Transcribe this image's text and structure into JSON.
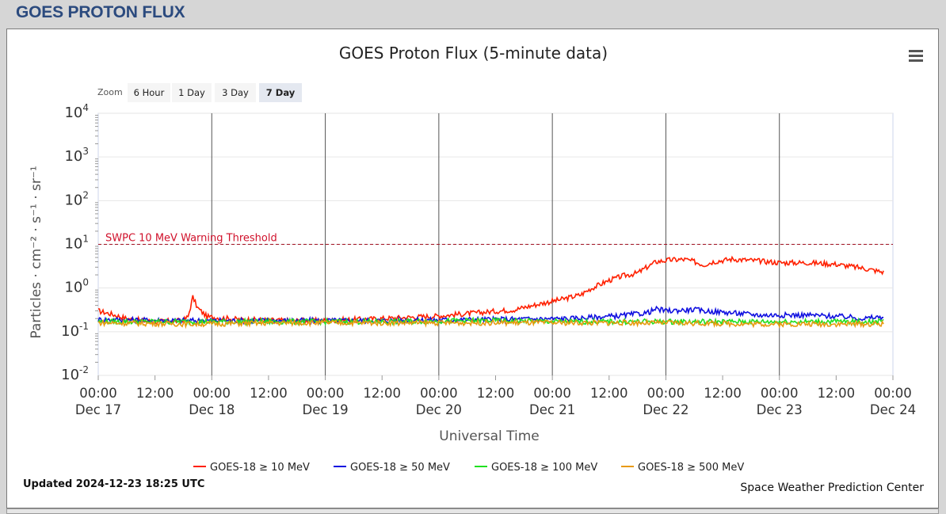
{
  "page": {
    "title": "GOES PROTON FLUX"
  },
  "chart": {
    "title": "GOES Proton Flux (5-minute data)",
    "updated": "Updated 2024-12-23 18:25 UTC",
    "credit": "Space Weather Prediction Center",
    "zoom": {
      "label": "Zoom",
      "buttons": [
        "6 Hour",
        "1 Day",
        "3 Day",
        "7 Day"
      ],
      "active": "7 Day"
    }
  },
  "chart_data": {
    "type": "line",
    "title": "GOES Proton Flux (5-minute data)",
    "xlabel": "Universal Time",
    "ylabel": "Particles · cm⁻² · s⁻¹ · sr⁻¹",
    "yscale": "log",
    "ylim": [
      0.01,
      10000
    ],
    "xlim_hours": [
      0,
      168
    ],
    "yticks": [
      {
        "base": "10",
        "exp": "4",
        "value": 10000
      },
      {
        "base": "10",
        "exp": "3",
        "value": 1000
      },
      {
        "base": "10",
        "exp": "2",
        "value": 100
      },
      {
        "base": "10",
        "exp": "1",
        "value": 10
      },
      {
        "base": "10",
        "exp": "0",
        "value": 1
      },
      {
        "base": "10",
        "exp": "-1",
        "value": 0.1
      },
      {
        "base": "10",
        "exp": "-2",
        "value": 0.01
      }
    ],
    "xticks": [
      {
        "time": "00:00",
        "date": "Dec 17"
      },
      {
        "time": "12:00",
        "date": ""
      },
      {
        "time": "00:00",
        "date": "Dec 18"
      },
      {
        "time": "12:00",
        "date": ""
      },
      {
        "time": "00:00",
        "date": "Dec 19"
      },
      {
        "time": "12:00",
        "date": ""
      },
      {
        "time": "00:00",
        "date": "Dec 20"
      },
      {
        "time": "12:00",
        "date": ""
      },
      {
        "time": "00:00",
        "date": "Dec 21"
      },
      {
        "time": "12:00",
        "date": ""
      },
      {
        "time": "00:00",
        "date": "Dec 22"
      },
      {
        "time": "12:00",
        "date": ""
      },
      {
        "time": "00:00",
        "date": "Dec 23"
      },
      {
        "time": "12:00",
        "date": ""
      },
      {
        "time": "00:00",
        "date": "Dec 24"
      }
    ],
    "threshold": {
      "label": "SWPC 10 MeV Warning Threshold",
      "value": 10,
      "color": "#a01020"
    },
    "series": [
      {
        "name": "GOES-18 ≥ 10 MeV",
        "color": "#ff2000",
        "points": [
          [
            0,
            0.3
          ],
          [
            3,
            0.25
          ],
          [
            6,
            0.2
          ],
          [
            9,
            0.18
          ],
          [
            12,
            0.17
          ],
          [
            18,
            0.18
          ],
          [
            19,
            0.22
          ],
          [
            20,
            0.62
          ],
          [
            21,
            0.35
          ],
          [
            23,
            0.22
          ],
          [
            30,
            0.19
          ],
          [
            40,
            0.18
          ],
          [
            48,
            0.18
          ],
          [
            60,
            0.2
          ],
          [
            72,
            0.23
          ],
          [
            80,
            0.27
          ],
          [
            88,
            0.32
          ],
          [
            94,
            0.45
          ],
          [
            98,
            0.55
          ],
          [
            102,
            0.7
          ],
          [
            104,
            0.95
          ],
          [
            108,
            1.5
          ],
          [
            111,
            1.9
          ],
          [
            114,
            2.2
          ],
          [
            116,
            3.0
          ],
          [
            118,
            4.0
          ],
          [
            121,
            4.4
          ],
          [
            124,
            4.5
          ],
          [
            126,
            4.0
          ],
          [
            128,
            3.4
          ],
          [
            130,
            4.0
          ],
          [
            134,
            4.6
          ],
          [
            138,
            4.3
          ],
          [
            144,
            3.8
          ],
          [
            150,
            3.8
          ],
          [
            156,
            3.5
          ],
          [
            162,
            2.8
          ],
          [
            166,
            2.3
          ]
        ]
      },
      {
        "name": "GOES-18 ≥ 50 MeV",
        "color": "#1010e0",
        "points": [
          [
            0,
            0.19
          ],
          [
            20,
            0.18
          ],
          [
            40,
            0.18
          ],
          [
            60,
            0.18
          ],
          [
            80,
            0.19
          ],
          [
            100,
            0.2
          ],
          [
            110,
            0.23
          ],
          [
            116,
            0.27
          ],
          [
            118,
            0.33
          ],
          [
            120,
            0.3
          ],
          [
            126,
            0.32
          ],
          [
            128,
            0.3
          ],
          [
            134,
            0.27
          ],
          [
            140,
            0.24
          ],
          [
            150,
            0.24
          ],
          [
            158,
            0.22
          ],
          [
            162,
            0.2
          ],
          [
            166,
            0.22
          ]
        ]
      },
      {
        "name": "GOES-18 ≥ 100 MeV",
        "color": "#20e020",
        "points": [
          [
            0,
            0.17
          ],
          [
            20,
            0.17
          ],
          [
            40,
            0.17
          ],
          [
            60,
            0.17
          ],
          [
            80,
            0.18
          ],
          [
            100,
            0.17
          ],
          [
            120,
            0.17
          ],
          [
            140,
            0.17
          ],
          [
            160,
            0.17
          ],
          [
            166,
            0.17
          ]
        ]
      },
      {
        "name": "GOES-18 ≥ 500 MeV",
        "color": "#e89a10",
        "points": [
          [
            0,
            0.16
          ],
          [
            20,
            0.15
          ],
          [
            40,
            0.16
          ],
          [
            60,
            0.16
          ],
          [
            80,
            0.16
          ],
          [
            100,
            0.16
          ],
          [
            120,
            0.16
          ],
          [
            140,
            0.15
          ],
          [
            160,
            0.15
          ],
          [
            166,
            0.15
          ]
        ]
      }
    ]
  }
}
